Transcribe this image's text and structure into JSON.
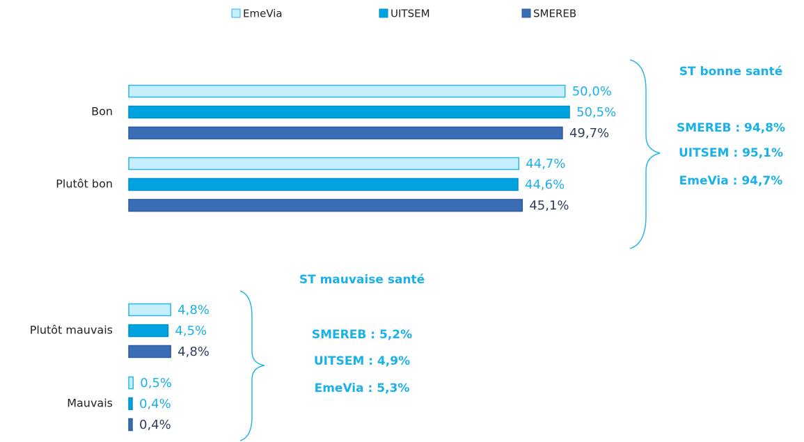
{
  "chart_data": {
    "type": "bar",
    "orientation": "horizontal",
    "categories": [
      "Bon",
      "Plutôt bon",
      "Plutôt mauvais",
      "Mauvais"
    ],
    "series": [
      {
        "name": "EmeVia",
        "color": "#c7eefc",
        "values": [
          50.0,
          44.7,
          4.8,
          0.5
        ],
        "value_labels": [
          "50,0%",
          "44,7%",
          "4,8%",
          "0,5%"
        ]
      },
      {
        "name": "UITSEM",
        "color": "#00a3e0",
        "values": [
          50.5,
          44.6,
          4.5,
          0.4
        ],
        "value_labels": [
          "50,5%",
          "44,6%",
          "4,5%",
          "0,4%"
        ]
      },
      {
        "name": "SMEREB",
        "color": "#3a6db3",
        "values": [
          49.7,
          45.1,
          4.8,
          0.4
        ],
        "value_labels": [
          "49,7%",
          "45,1%",
          "4,8%",
          "0,4%"
        ]
      }
    ],
    "annotations": {
      "good": {
        "title": "ST bonne santé",
        "lines": [
          "SMEREB : 94,8%",
          "UITSEM : 95,1%",
          "EmeVia : 94,7%"
        ]
      },
      "bad": {
        "title": "ST mauvaise santé",
        "lines": [
          "SMEREB : 5,2%",
          "UITSEM : 4,9%",
          "EmeVia : 5,3%"
        ]
      }
    },
    "legend": "top"
  }
}
